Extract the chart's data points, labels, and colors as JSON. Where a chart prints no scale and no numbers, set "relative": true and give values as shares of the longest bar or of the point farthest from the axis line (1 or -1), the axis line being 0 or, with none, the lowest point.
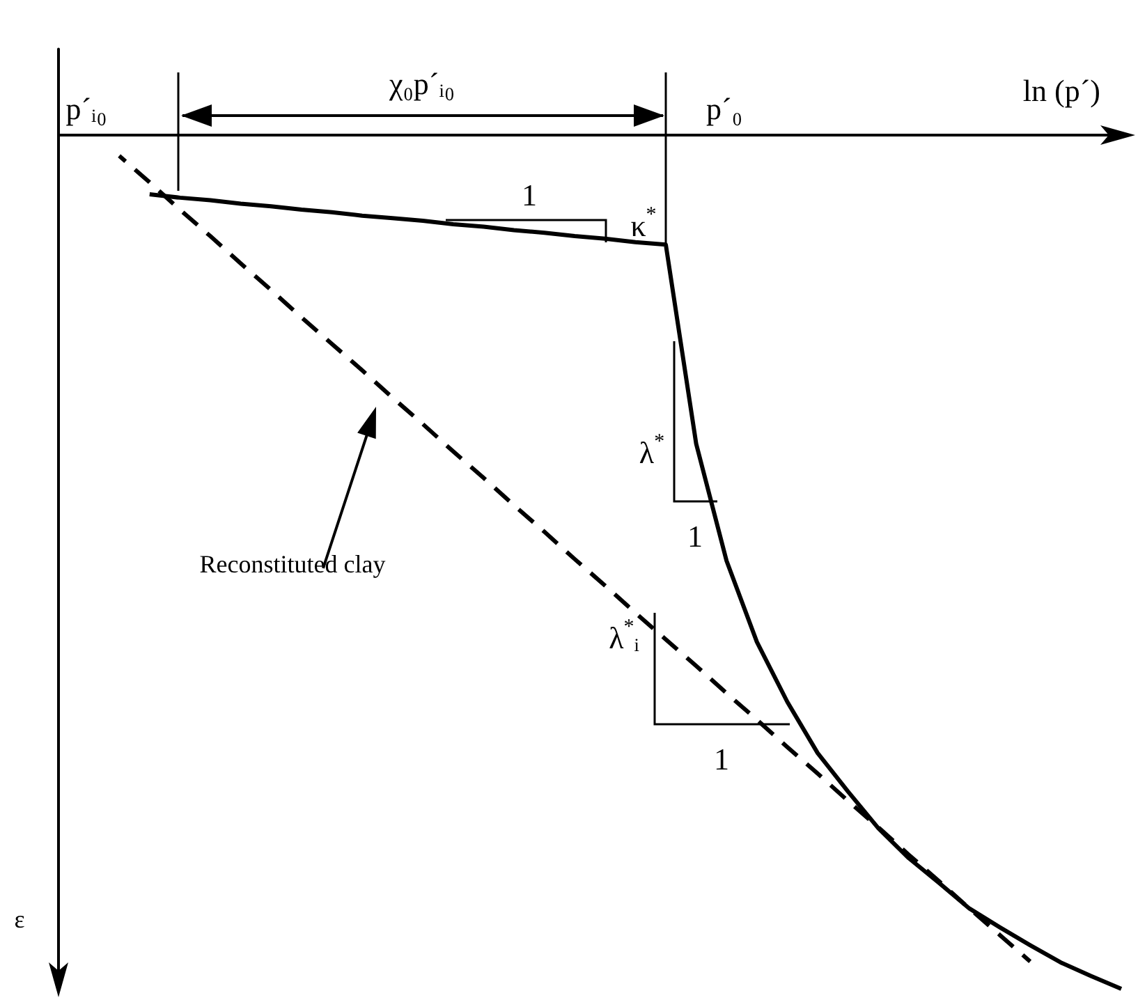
{
  "chart_data": {
    "type": "line",
    "relative": true,
    "marker": "none",
    "xlabel": "ln (p´)",
    "ylabel": "ε",
    "categories": [
      null,
      null,
      null,
      null,
      null,
      null,
      null,
      null,
      null,
      null,
      null,
      null,
      null,
      null,
      null,
      null,
      null,
      null,
      null,
      null,
      null,
      null,
      null,
      null,
      null,
      null,
      null,
      null,
      null,
      null,
      null,
      null,
      null,
      null,
      null,
      null
    ],
    "series": [
      {
        "color": "#000000",
        "line_style": "solid",
        "values": [
          null,
          null,
          null,
          -0.07,
          -0.074,
          -0.077,
          -0.081,
          -0.084,
          -0.088,
          -0.091,
          -0.095,
          -0.098,
          -0.101,
          -0.105,
          -0.108,
          -0.112,
          -0.115,
          -0.119,
          -0.122,
          -0.126,
          -0.129,
          -0.362,
          -0.499,
          -0.594,
          -0.664,
          -0.724,
          -0.769,
          -0.812,
          -0.847,
          -0.876,
          -0.906,
          -0.928,
          -0.949,
          -0.969,
          -0.985,
          -1
        ]
      },
      {
        "color": "#000000",
        "line_style": "dashed",
        "values": [
          null,
          null,
          -0.025,
          -0.056,
          -0.088,
          -0.119,
          -0.151,
          -0.182,
          -0.214,
          -0.245,
          -0.276,
          -0.308,
          -0.339,
          -0.371,
          -0.402,
          -0.434,
          -0.465,
          -0.497,
          -0.528,
          -0.56,
          -0.591,
          -0.622,
          -0.654,
          -0.685,
          -0.717,
          -0.748,
          -0.78,
          -0.811,
          -0.843,
          -0.874,
          -0.906,
          -0.937,
          -0.968,
          null,
          null,
          null
        ]
      }
    ],
    "annotations": [
      "p´ᵢ₀",
      "χ₀p´ᵢ₀",
      "p´₀",
      "1",
      "κ$^{*}$",
      "λ$^{*}$",
      "1",
      "λ$^{*}$ᵢ",
      "1",
      "Reconstituted clay"
    ]
  }
}
